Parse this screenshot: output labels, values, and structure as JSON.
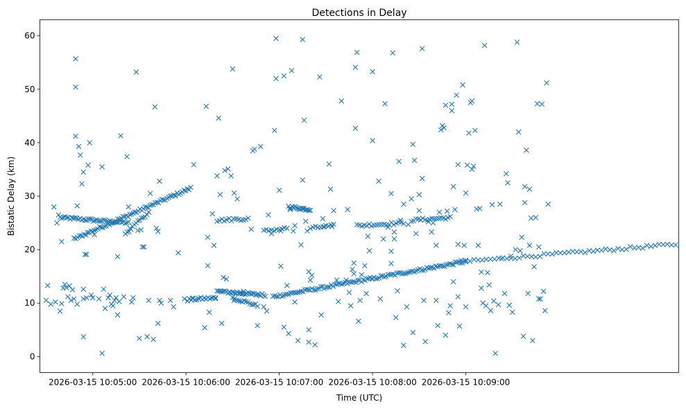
{
  "chart_data": {
    "type": "scatter",
    "title": "Detections in Delay",
    "xlabel": "Time (UTC)",
    "ylabel": "Bistatic Delay (km)",
    "x_unit": "seconds after 2026-03-15 10:04:00",
    "xlim": [
      26,
      437
    ],
    "ylim": [
      -3,
      63
    ],
    "xticks": [
      {
        "value": 60,
        "label": "2026-03-15 10:05:00"
      },
      {
        "value": 120,
        "label": "2026-03-15 10:06:00"
      },
      {
        "value": 180,
        "label": "2026-03-15 10:07:00"
      },
      {
        "value": 240,
        "label": "2026-03-15 10:08:00"
      },
      {
        "value": 300,
        "label": "2026-03-15 10:09:00"
      }
    ],
    "yticks": [
      0,
      10,
      20,
      30,
      40,
      50,
      60
    ],
    "marker": "x",
    "color": "#1f77b4",
    "grid": false,
    "tracks": [
      {
        "x_start": 39,
        "x_end": 83,
        "y_start": 26.0,
        "y_end": 25.0,
        "n": 42
      },
      {
        "x_start": 48,
        "x_end": 123,
        "y_start": 22.0,
        "y_end": 31.5,
        "n": 70
      },
      {
        "x_start": 81,
        "x_end": 96,
        "y_start": 23.0,
        "y_end": 27.0,
        "n": 14
      },
      {
        "x_start": 140,
        "x_end": 171,
        "y_start": 12.2,
        "y_end": 11.5,
        "n": 32
      },
      {
        "x_start": 150,
        "x_end": 166,
        "y_start": 11.0,
        "y_end": 9.5,
        "n": 14
      },
      {
        "x_start": 121,
        "x_end": 139,
        "y_start": 10.6,
        "y_end": 11.0,
        "n": 16
      },
      {
        "x_start": 176,
        "x_end": 300,
        "y_start": 11.2,
        "y_end": 17.8,
        "n": 110
      },
      {
        "x_start": 300,
        "x_end": 435,
        "y_start": 17.8,
        "y_end": 21.0,
        "n": 52
      },
      {
        "x_start": 186,
        "x_end": 200,
        "y_start": 28.0,
        "y_end": 27.5,
        "n": 18
      },
      {
        "x_start": 140,
        "x_end": 160,
        "y_start": 25.5,
        "y_end": 25.8,
        "n": 14
      },
      {
        "x_start": 230,
        "x_end": 260,
        "y_start": 24.5,
        "y_end": 25.0,
        "n": 20
      },
      {
        "x_start": 265,
        "x_end": 290,
        "y_start": 25.5,
        "y_end": 26.0,
        "n": 18
      },
      {
        "x_start": 170,
        "x_end": 185,
        "y_start": 23.5,
        "y_end": 24.0,
        "n": 10
      },
      {
        "x_start": 200,
        "x_end": 215,
        "y_start": 24.0,
        "y_end": 24.5,
        "n": 10
      }
    ],
    "points": [
      [
        30,
        10.5
      ],
      [
        31,
        13.3
      ],
      [
        33,
        9.8
      ],
      [
        35,
        28.0
      ],
      [
        36,
        10.2
      ],
      [
        37,
        25.0
      ],
      [
        38,
        26.5
      ],
      [
        39,
        8.5
      ],
      [
        40,
        9.9
      ],
      [
        40,
        21.5
      ],
      [
        41,
        12.8
      ],
      [
        42,
        13.5
      ],
      [
        43,
        12.9
      ],
      [
        44,
        11.2
      ],
      [
        45,
        13.2
      ],
      [
        46,
        10.5
      ],
      [
        47,
        12.5
      ],
      [
        48,
        10.8
      ],
      [
        49,
        55.7
      ],
      [
        49,
        50.4
      ],
      [
        49,
        41.2
      ],
      [
        50,
        28.2
      ],
      [
        50,
        9.8
      ],
      [
        51,
        39.3
      ],
      [
        52,
        37.7
      ],
      [
        53,
        32.3
      ],
      [
        54,
        34.5
      ],
      [
        55,
        19.1
      ],
      [
        56,
        19.1
      ],
      [
        56,
        11.0
      ],
      [
        57,
        35.8
      ],
      [
        58,
        40.0
      ],
      [
        59,
        11.5
      ],
      [
        60,
        11.0
      ],
      [
        54,
        3.7
      ],
      [
        54,
        12.6
      ],
      [
        54,
        10.8
      ],
      [
        61,
        22.8
      ],
      [
        64,
        10.8
      ],
      [
        66,
        0.6
      ],
      [
        66,
        35.5
      ],
      [
        67,
        12.6
      ],
      [
        68,
        9.0
      ],
      [
        70,
        11.0
      ],
      [
        71,
        11.5
      ],
      [
        72,
        9.8
      ],
      [
        73,
        9.5
      ],
      [
        74,
        10.5
      ],
      [
        75,
        11.0
      ],
      [
        76,
        18.7
      ],
      [
        76,
        7.8
      ],
      [
        77,
        10.3
      ],
      [
        78,
        41.3
      ],
      [
        80,
        11.2
      ],
      [
        82,
        37.4
      ],
      [
        83,
        28.0
      ],
      [
        84,
        24.0
      ],
      [
        85,
        10.2
      ],
      [
        86,
        11.0
      ],
      [
        88,
        53.2
      ],
      [
        89,
        23.6
      ],
      [
        90,
        3.4
      ],
      [
        91,
        23.7
      ],
      [
        92,
        20.5
      ],
      [
        93,
        20.5
      ],
      [
        95,
        3.7
      ],
      [
        96,
        10.5
      ],
      [
        97,
        30.5
      ],
      [
        99,
        3.2
      ],
      [
        100,
        46.7
      ],
      [
        101,
        24.0
      ],
      [
        102,
        23.4
      ],
      [
        103,
        10.5
      ],
      [
        104,
        10.0
      ],
      [
        102,
        6.2
      ],
      [
        103,
        32.8
      ],
      [
        110,
        10.5
      ],
      [
        112,
        9.3
      ],
      [
        115,
        19.4
      ],
      [
        119,
        10.8
      ],
      [
        124,
        10.9
      ],
      [
        125,
        35.9
      ],
      [
        128,
        10.9
      ],
      [
        132,
        5.4
      ],
      [
        133,
        46.8
      ],
      [
        134,
        22.3
      ],
      [
        134,
        17.0
      ],
      [
        135,
        8.3
      ],
      [
        137,
        26.7
      ],
      [
        138,
        20.8
      ],
      [
        139,
        10.8
      ],
      [
        140,
        33.8
      ],
      [
        141,
        44.6
      ],
      [
        142,
        30.3
      ],
      [
        145,
        34.8
      ],
      [
        143,
        6.2
      ],
      [
        147,
        35.1
      ],
      [
        149,
        33.8
      ],
      [
        151,
        30.6
      ],
      [
        150,
        53.8
      ],
      [
        153,
        29.5
      ],
      [
        144,
        14.8
      ],
      [
        146,
        14.5
      ],
      [
        148,
        12.0
      ],
      [
        151,
        10.5
      ],
      [
        155,
        12.0
      ],
      [
        157,
        12.2
      ],
      [
        162,
        23.8
      ],
      [
        163,
        38.5
      ],
      [
        164,
        38.8
      ],
      [
        166,
        5.8
      ],
      [
        168,
        39.3
      ],
      [
        170,
        9.3
      ],
      [
        172,
        8.5
      ],
      [
        173,
        26.5
      ],
      [
        175,
        23.0
      ],
      [
        177,
        42.3
      ],
      [
        178,
        52.0
      ],
      [
        178,
        59.5
      ],
      [
        180,
        31.1
      ],
      [
        181,
        16.9
      ],
      [
        181,
        23.5
      ],
      [
        183,
        5.5
      ],
      [
        183,
        52.5
      ],
      [
        185,
        13.3
      ],
      [
        186,
        4.3
      ],
      [
        187,
        27.5
      ],
      [
        188,
        53.5
      ],
      [
        189,
        23.5
      ],
      [
        190,
        24.5
      ],
      [
        190,
        10.2
      ],
      [
        192,
        3.0
      ],
      [
        194,
        20.9
      ],
      [
        195,
        33.0
      ],
      [
        196,
        44.2
      ],
      [
        195,
        59.3
      ],
      [
        197,
        25.3
      ],
      [
        198,
        23.5
      ],
      [
        199,
        2.7
      ],
      [
        199,
        15.9
      ],
      [
        199,
        5.0
      ],
      [
        200,
        14.3
      ],
      [
        201,
        15.2
      ],
      [
        203,
        2.2
      ],
      [
        206,
        52.3
      ],
      [
        207,
        7.8
      ],
      [
        208,
        25.8
      ],
      [
        209,
        24.3
      ],
      [
        212,
        36.0
      ],
      [
        213,
        31.3
      ],
      [
        214,
        24.3
      ],
      [
        215,
        27.3
      ],
      [
        217,
        14.3
      ],
      [
        218,
        10.3
      ],
      [
        220,
        47.8
      ],
      [
        223,
        14.3
      ],
      [
        224,
        27.5
      ],
      [
        225,
        12.0
      ],
      [
        226,
        9.5
      ],
      [
        227,
        16.3
      ],
      [
        228,
        15.5
      ],
      [
        228,
        17.5
      ],
      [
        229,
        42.7
      ],
      [
        229,
        54.1
      ],
      [
        230,
        56.9
      ],
      [
        231,
        6.6
      ],
      [
        232,
        10.5
      ],
      [
        233,
        15.3
      ],
      [
        235,
        17.0
      ],
      [
        236,
        11.8
      ],
      [
        237,
        22.5
      ],
      [
        238,
        19.8
      ],
      [
        240,
        53.3
      ],
      [
        240,
        40.4
      ],
      [
        240,
        14.5
      ],
      [
        244,
        32.8
      ],
      [
        245,
        10.8
      ],
      [
        247,
        22.0
      ],
      [
        248,
        47.3
      ],
      [
        250,
        24.2
      ],
      [
        252,
        17.4
      ],
      [
        252,
        30.5
      ],
      [
        252,
        19.7
      ],
      [
        253,
        56.8
      ],
      [
        254,
        23.3
      ],
      [
        254,
        22.0
      ],
      [
        255,
        7.3
      ],
      [
        256,
        12.3
      ],
      [
        257,
        36.5
      ],
      [
        258,
        25.5
      ],
      [
        260,
        28.5
      ],
      [
        260,
        2.1
      ],
      [
        262,
        9.3
      ],
      [
        263,
        24.7
      ],
      [
        265,
        29.5
      ],
      [
        266,
        4.5
      ],
      [
        266,
        39.7
      ],
      [
        267,
        36.7
      ],
      [
        268,
        23.0
      ],
      [
        270,
        30.3
      ],
      [
        270,
        27.3
      ],
      [
        272,
        33.3
      ],
      [
        272,
        57.6
      ],
      [
        273,
        10.5
      ],
      [
        274,
        2.8
      ],
      [
        276,
        25.2
      ],
      [
        278,
        23.3
      ],
      [
        279,
        25.0
      ],
      [
        281,
        20.8
      ],
      [
        281,
        10.5
      ],
      [
        282,
        5.8
      ],
      [
        283,
        27.0
      ],
      [
        284,
        42.4
      ],
      [
        285,
        43.2
      ],
      [
        286,
        42.8
      ],
      [
        287,
        47.0
      ],
      [
        287,
        4.0
      ],
      [
        288,
        27.2
      ],
      [
        289,
        8.2
      ],
      [
        290,
        9.5
      ],
      [
        291,
        47.2
      ],
      [
        291,
        46.0
      ],
      [
        292,
        31.8
      ],
      [
        292,
        14.0
      ],
      [
        293,
        27.5
      ],
      [
        294,
        48.9
      ],
      [
        295,
        35.9
      ],
      [
        295,
        11.2
      ],
      [
        295,
        21.0
      ],
      [
        296,
        5.7
      ],
      [
        297,
        18.0
      ],
      [
        298,
        50.8
      ],
      [
        299,
        20.8
      ],
      [
        300,
        9.3
      ],
      [
        300,
        30.6
      ],
      [
        301,
        35.8
      ],
      [
        302,
        41.8
      ],
      [
        303,
        47.5
      ],
      [
        304,
        47.8
      ],
      [
        304,
        35.0
      ],
      [
        305,
        35.6
      ],
      [
        306,
        42.3
      ],
      [
        307,
        27.6
      ],
      [
        308,
        20.8
      ],
      [
        309,
        27.7
      ],
      [
        310,
        15.8
      ],
      [
        310,
        12.8
      ],
      [
        311,
        10.0
      ],
      [
        312,
        58.2
      ],
      [
        313,
        9.5
      ],
      [
        314,
        15.7
      ],
      [
        315,
        13.4
      ],
      [
        316,
        8.6
      ],
      [
        317,
        28.4
      ],
      [
        318,
        10.4
      ],
      [
        319,
        0.6
      ],
      [
        321,
        9.7
      ],
      [
        322,
        28.5
      ],
      [
        323,
        18.3
      ],
      [
        325,
        11.8
      ],
      [
        326,
        34.2
      ],
      [
        327,
        32.5
      ],
      [
        328,
        9.6
      ],
      [
        329,
        18.8
      ],
      [
        330,
        8.3
      ],
      [
        332,
        20.0
      ],
      [
        333,
        58.8
      ],
      [
        334,
        42.0
      ],
      [
        335,
        19.8
      ],
      [
        336,
        22.3
      ],
      [
        337,
        3.8
      ],
      [
        338,
        31.8
      ],
      [
        338,
        28.8
      ],
      [
        339,
        38.6
      ],
      [
        340,
        11.8
      ],
      [
        341,
        31.3
      ],
      [
        342,
        25.9
      ],
      [
        343,
        3.0
      ],
      [
        344,
        16.8
      ],
      [
        345,
        26.0
      ],
      [
        346,
        47.3
      ],
      [
        347,
        10.8
      ],
      [
        348,
        10.8
      ],
      [
        349,
        47.2
      ],
      [
        350,
        12.2
      ],
      [
        351,
        8.6
      ],
      [
        352,
        51.2
      ],
      [
        353,
        28.5
      ],
      [
        347,
        20.5
      ],
      [
        341,
        20.8
      ]
    ]
  }
}
